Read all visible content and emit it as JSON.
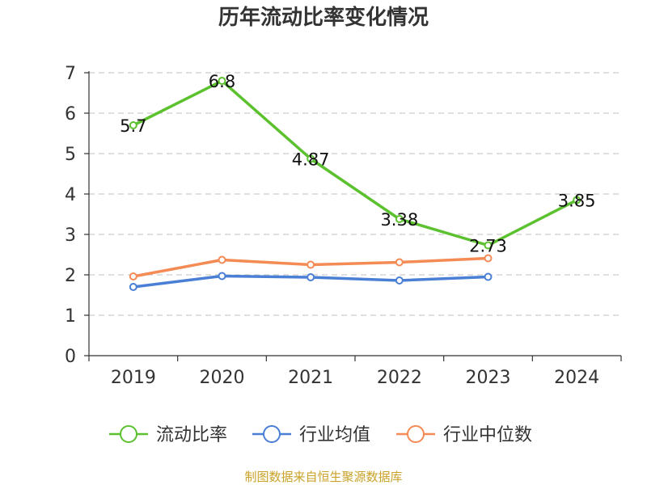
{
  "chart_data": {
    "type": "line",
    "title": "历年流动比率变化情况",
    "categories": [
      "2019",
      "2020",
      "2021",
      "2022",
      "2023",
      "2024"
    ],
    "ylim": [
      0,
      7
    ],
    "yticks": [
      "0",
      "1",
      "2",
      "3",
      "4",
      "5",
      "6",
      "7"
    ],
    "grid": true,
    "legend_position": "bottom",
    "series": [
      {
        "name": "流动比率",
        "color": "#5cc12f",
        "values": [
          5.7,
          6.8,
          4.87,
          3.38,
          2.73,
          3.85
        ],
        "labels": [
          "5.7",
          "6.8",
          "4.87",
          "3.38",
          "2.73",
          "3.85"
        ]
      },
      {
        "name": "行业均值",
        "color": "#4a7fd6",
        "values": [
          1.7,
          1.97,
          1.94,
          1.86,
          1.95,
          null
        ]
      },
      {
        "name": "行业中位数",
        "color": "#f48a54",
        "values": [
          1.96,
          2.37,
          2.25,
          2.31,
          2.41,
          null
        ]
      }
    ],
    "source": "制图数据来自恒生聚源数据库"
  }
}
